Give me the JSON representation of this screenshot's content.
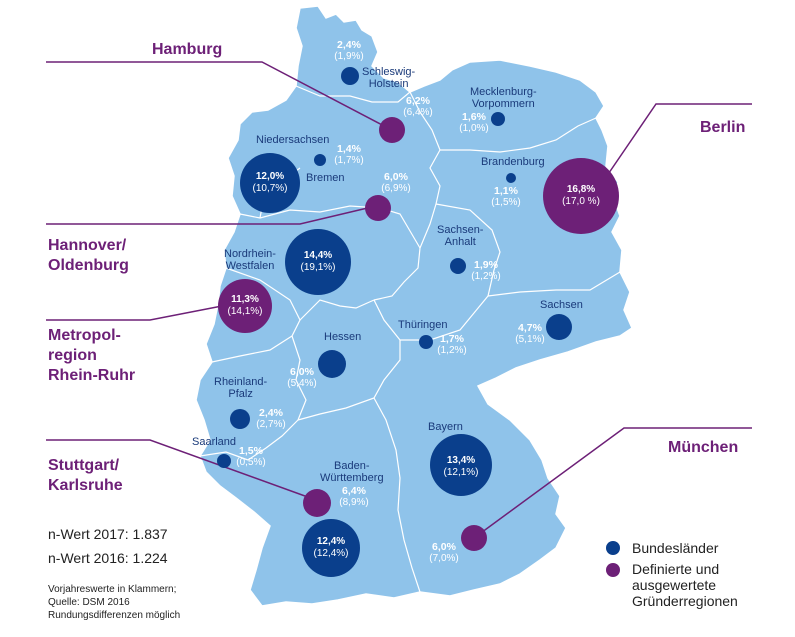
{
  "colors": {
    "map_fill": "#8fc3ea",
    "border": "#ffffff",
    "bundesland": "#0a3f8c",
    "region": "#6d2077",
    "label_text": "#1a3a7a"
  },
  "states": {
    "schleswig_holstein": {
      "name": "Schleswig-\nHolstein",
      "v2017": "2,4%",
      "v2016": "(1,9%)"
    },
    "mecklenburg": {
      "name": "Mecklenburg-\nVorpommern",
      "v2017": "1,6%",
      "v2016": "(1,0%)"
    },
    "niedersachsen": {
      "name": "Niedersachsen",
      "v2017": "12,0%",
      "v2016": "(10,7%)"
    },
    "bremen": {
      "name": "Bremen",
      "v2017": "1,4%",
      "v2016": "(1,7%)"
    },
    "brandenburg": {
      "name": "Brandenburg",
      "v2017": "1,1%",
      "v2016": "(1,5%)"
    },
    "sachsen_anhalt": {
      "name": "Sachsen-\nAnhalt",
      "v2017": "1,9%",
      "v2016": "(1,2%)"
    },
    "nrw": {
      "name": "Nordrhein-\nWestfalen",
      "v2017": "14,4%",
      "v2016": "(19,1%)"
    },
    "sachsen": {
      "name": "Sachsen",
      "v2017": "4,7%",
      "v2016": "(5,1%)"
    },
    "hessen": {
      "name": "Hessen",
      "v2017": "6,0%",
      "v2016": "(5,4%)"
    },
    "thueringen": {
      "name": "Thüringen",
      "v2017": "1,7%",
      "v2016": "(1,2%)"
    },
    "rheinland_pfalz": {
      "name": "Rheinland-\nPfalz",
      "v2017": "2,4%",
      "v2016": "(2,7%)"
    },
    "saarland": {
      "name": "Saarland",
      "v2017": "1,5%",
      "v2016": "(0,5%)"
    },
    "bayern": {
      "name": "Bayern",
      "v2017": "13,4%",
      "v2016": "(12,1%)"
    },
    "bw": {
      "name": "Baden-\nWürttemberg",
      "v2017": "12,4%",
      "v2016": "(12,4%)"
    }
  },
  "regions": {
    "hamburg": {
      "name": "Hamburg",
      "v2017": "6,2%",
      "v2016": "(6,4%)"
    },
    "berlin": {
      "name": "Berlin",
      "v2017": "16,8%",
      "v2016": "(17,0 %)"
    },
    "hannover": {
      "name": "Hannover/\nOldenburg",
      "v2017": "6,0%",
      "v2016": "(6,9%)"
    },
    "rhein_ruhr": {
      "name": "Metropol-\nregion\nRhein-Ruhr",
      "v2017": "11,3%",
      "v2016": "(14,1%)"
    },
    "stuttgart": {
      "name": "Stuttgart/\nKarlsruhe",
      "v2017": "6,4%",
      "v2016": "(8,9%)"
    },
    "muenchen": {
      "name": "München",
      "v2017": "6,0%",
      "v2016": "(7,0%)"
    }
  },
  "nwert": {
    "y2017": "n-Wert 2017: 1.837",
    "y2016": "n-Wert 2016: 1.224"
  },
  "note": {
    "line1": "Vorjahreswerte in Klammern;",
    "line2": "Quelle: DSM 2016",
    "line3": "Rundungsdifferenzen möglich"
  },
  "legend": {
    "bundeslaender": "Bundesländer",
    "regionen_l1": "Definierte und",
    "regionen_l2": "ausgewertete",
    "regionen_l3": "Gründerregionen"
  }
}
